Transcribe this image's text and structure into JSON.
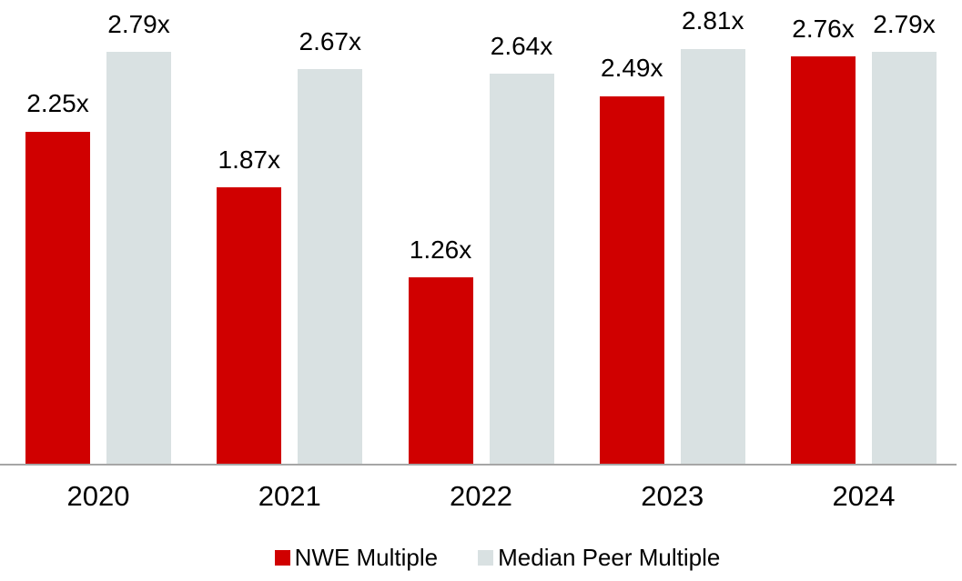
{
  "chart_data": {
    "type": "bar",
    "title": "",
    "categories": [
      "2020",
      "2021",
      "2022",
      "2023",
      "2024"
    ],
    "series": [
      {
        "name": "NWE Multiple",
        "color": "#D00000",
        "values": [
          2.25,
          1.87,
          1.26,
          2.49,
          2.76
        ],
        "labels": [
          "2.25x",
          "1.87x",
          "1.26x",
          "2.49x",
          "2.76x"
        ]
      },
      {
        "name": "Median Peer Multiple",
        "color": "#D9E1E2",
        "values": [
          2.79,
          2.67,
          2.64,
          2.81,
          2.79
        ],
        "labels": [
          "2.79x",
          "2.67x",
          "2.64x",
          "2.81x",
          "2.79x"
        ]
      }
    ],
    "ylim": [
      0,
      3.14
    ],
    "xlabel": "",
    "ylabel": "",
    "grid": false,
    "legend_position": "bottom",
    "value_suffix": "x",
    "axis_line_color": "#A6A6A6",
    "label_color": "#000000",
    "background_color": "#FFFFFF"
  }
}
